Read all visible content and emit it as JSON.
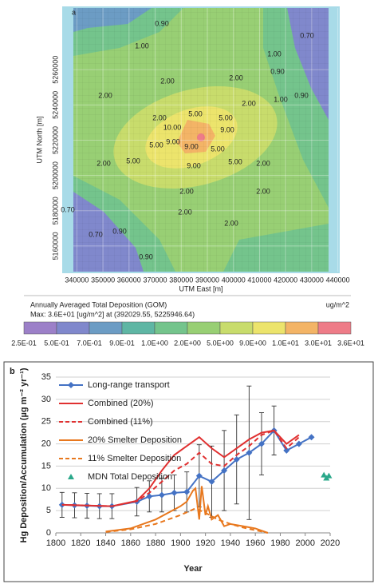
{
  "chart_data": [
    {
      "type": "contour",
      "panel": "a",
      "x_label": "UTM East [m]",
      "y_label": "UTM North [m]",
      "xlim": [
        335000,
        445000
      ],
      "ylim": [
        5150000,
        5295000
      ],
      "xticks": [
        340000,
        350000,
        360000,
        370000,
        380000,
        390000,
        400000,
        410000,
        420000,
        430000,
        440000
      ],
      "yticks": [
        5160000,
        5180000,
        5200000,
        5220000,
        5240000,
        5260000
      ],
      "grid": true,
      "annotations": [
        "0.90",
        "1.00",
        "0.70",
        "1.00",
        "0.90",
        "2.00",
        "2.00",
        "0.90",
        "1.00",
        "2.00",
        "2.00",
        "2.00",
        "5.00",
        "5.00",
        "9.00",
        "10.00",
        "9.00",
        "5.00",
        "9.00",
        "5.00",
        "9.00",
        "5.00",
        "2.00",
        "5.00",
        "2.00",
        "2.00",
        "2.00",
        "2.00",
        "0.70",
        "2.00",
        "0.90",
        "0.70",
        "0.90"
      ],
      "colorbar": {
        "title": "Annually Averaged Total Deposition (GOM)",
        "unit": "ug/m^2",
        "max_text": "Max:  3.6E+01  [ug/m^2]  at  (392029.55, 5225946.64)",
        "ticks": [
          {
            "value": 0.25,
            "label": "2.5E-01"
          },
          {
            "value": 0.5,
            "label": "5.0E-01"
          },
          {
            "value": 0.7,
            "label": "7.0E-01"
          },
          {
            "value": 0.9,
            "label": "9.0E-01"
          },
          {
            "value": 1,
            "label": "1.0E+00"
          },
          {
            "value": 2,
            "label": "2.0E+00"
          },
          {
            "value": 5,
            "label": "5.0E+00"
          },
          {
            "value": 9,
            "label": "9.0E+00"
          },
          {
            "value": 10,
            "label": "1.0E+01"
          },
          {
            "value": 30,
            "label": "3.0E+01"
          },
          {
            "value": 36,
            "label": "3.6E+01"
          }
        ],
        "colors": [
          "#9c80c8",
          "#8088cc",
          "#6c9cc4",
          "#5fb6a4",
          "#74c48c",
          "#98cf74",
          "#c8dc6c",
          "#ece46c",
          "#f3b466",
          "#ee7c88"
        ]
      }
    },
    {
      "type": "line",
      "panel": "b",
      "x_label": "Year",
      "y_label": "Hg Deposition/Accumulation (µg m⁻² yr⁻¹)",
      "xlim": [
        1800,
        2020
      ],
      "ylim": [
        0,
        35
      ],
      "xticks": [
        1800,
        1820,
        1840,
        1860,
        1880,
        1900,
        1920,
        1940,
        1960,
        1980,
        2000,
        2020
      ],
      "yticks": [
        0,
        5,
        10,
        15,
        20,
        25,
        30,
        35
      ],
      "grid": true,
      "series": [
        {
          "name": "Long-range transport",
          "color": "#4472c4",
          "marker": "diamond",
          "dashed": false,
          "x": [
            1805,
            1815,
            1825,
            1835,
            1845,
            1865,
            1875,
            1885,
            1895,
            1905,
            1915,
            1925,
            1935,
            1945,
            1955,
            1965,
            1975,
            1985,
            1995,
            2005
          ],
          "values": [
            6.3,
            6.2,
            6.1,
            6.0,
            6.0,
            7.0,
            8.2,
            8.5,
            9.0,
            9.2,
            12.8,
            11.5,
            14,
            16.5,
            18,
            20,
            23,
            18.5,
            20,
            21.5
          ],
          "errors": [
            2.8,
            2.8,
            2.8,
            2.8,
            2.8,
            3.2,
            3.5,
            3.8,
            4,
            4.5,
            7,
            8,
            9,
            10,
            15,
            7,
            5.5,
            null,
            null,
            null
          ]
        },
        {
          "name": "Combined (20%)",
          "color": "#e03030",
          "marker": null,
          "dashed": false,
          "x": [
            1805,
            1845,
            1865,
            1875,
            1885,
            1895,
            1905,
            1915,
            1925,
            1935,
            1945,
            1955,
            1965,
            1975,
            1985,
            1995
          ],
          "values": [
            6.3,
            6.0,
            7.2,
            10,
            14,
            17.5,
            19.5,
            21.5,
            19,
            17,
            19,
            21,
            22.5,
            23,
            20,
            22
          ]
        },
        {
          "name": "Combined (11%)",
          "color": "#e03030",
          "marker": null,
          "dashed": true,
          "x": [
            1805,
            1845,
            1865,
            1875,
            1885,
            1895,
            1905,
            1915,
            1925,
            1935,
            1945,
            1955,
            1965,
            1975,
            1985,
            1995
          ],
          "values": [
            6.3,
            6.0,
            7.1,
            9,
            11.5,
            14,
            15.5,
            18,
            15.5,
            15,
            17.5,
            19.5,
            22,
            23,
            19,
            21.5
          ]
        },
        {
          "name": "20% Smelter Deposition",
          "color": "#e8781e",
          "marker": null,
          "dashed": false,
          "x": [
            1840,
            1860,
            1880,
            1900,
            1905,
            1910,
            1912,
            1915,
            1917,
            1920,
            1922,
            1925,
            1930,
            1935,
            1940,
            1950,
            1960,
            1965,
            1970
          ],
          "values": [
            0.3,
            1,
            3,
            6,
            7,
            9.5,
            10,
            3,
            10.5,
            4,
            6,
            3,
            4,
            1.5,
            2,
            1.5,
            1,
            0.5,
            0
          ]
        },
        {
          "name": "11% Smelter Deposition",
          "color": "#e8781e",
          "marker": null,
          "dashed": true,
          "x": [
            1840,
            1860,
            1880,
            1900,
            1912,
            1920,
            1930,
            1940,
            1950,
            1960,
            1970
          ],
          "values": [
            0.2,
            0.8,
            2,
            4,
            5.5,
            4.5,
            3,
            2,
            1.2,
            0.6,
            0
          ]
        },
        {
          "name": "MDN Total Deposition",
          "color": "#2aa88a",
          "marker": "triangle",
          "dashed": false,
          "no_line": true,
          "x": [
            2015,
            2017,
            2019
          ],
          "values": [
            13,
            12.3,
            12.8
          ]
        }
      ]
    }
  ]
}
